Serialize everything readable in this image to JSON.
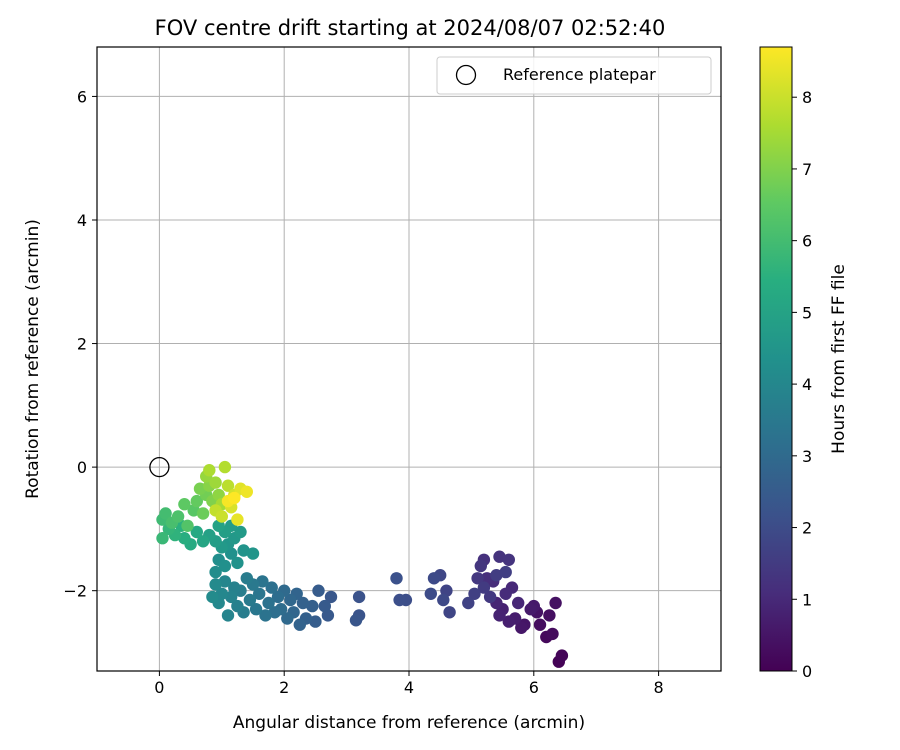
{
  "chart_data": {
    "type": "scatter",
    "title": "FOV centre drift starting at 2024/08/07 02:52:40",
    "xlabel": "Angular distance from reference (arcmin)",
    "ylabel": "Rotation from reference (arcmin)",
    "xlim": [
      -1,
      9
    ],
    "ylim": [
      -3.3,
      6.8
    ],
    "xticks": [
      0,
      2,
      4,
      6,
      8
    ],
    "yticks": [
      -2,
      0,
      2,
      4,
      6
    ],
    "grid": true,
    "legend": {
      "placement": "top-right",
      "entries": [
        "Reference platepar"
      ]
    },
    "reference_point": {
      "x": 0,
      "y": 0,
      "label": "Reference platepar"
    },
    "colorbar": {
      "label": "Hours from first FF file",
      "colormap": "viridis",
      "range": [
        0,
        8.7
      ],
      "ticks": [
        0,
        1,
        2,
        3,
        4,
        5,
        6,
        7,
        8
      ]
    },
    "series": [
      {
        "points": [
          [
            6.4,
            -3.15,
            0.05
          ],
          [
            6.45,
            -3.05,
            0.1
          ],
          [
            6.2,
            -2.75,
            0.2
          ],
          [
            6.3,
            -2.7,
            0.25
          ],
          [
            6.1,
            -2.55,
            0.3
          ],
          [
            6.25,
            -2.4,
            0.35
          ],
          [
            6.35,
            -2.2,
            0.4
          ],
          [
            6.05,
            -2.35,
            0.45
          ],
          [
            5.85,
            -2.55,
            0.5
          ],
          [
            5.8,
            -2.6,
            0.55
          ],
          [
            6.0,
            -2.25,
            0.6
          ],
          [
            5.95,
            -2.3,
            0.65
          ],
          [
            5.7,
            -2.45,
            0.7
          ],
          [
            5.6,
            -2.5,
            0.75
          ],
          [
            5.5,
            -2.3,
            0.8
          ],
          [
            5.45,
            -2.4,
            0.85
          ],
          [
            5.4,
            -2.2,
            0.9
          ],
          [
            5.75,
            -2.2,
            0.95
          ],
          [
            5.65,
            -1.95,
            1.0
          ],
          [
            5.55,
            -2.05,
            1.05
          ],
          [
            5.35,
            -1.85,
            1.1
          ],
          [
            5.25,
            -1.8,
            1.15
          ],
          [
            5.2,
            -1.5,
            1.2
          ],
          [
            5.45,
            -1.45,
            1.25
          ],
          [
            5.6,
            -1.5,
            1.3
          ],
          [
            5.15,
            -1.6,
            1.35
          ],
          [
            5.1,
            -1.8,
            1.4
          ],
          [
            5.3,
            -2.1,
            1.45
          ],
          [
            5.2,
            -1.95,
            1.5
          ],
          [
            5.4,
            -1.75,
            1.55
          ],
          [
            5.55,
            -1.7,
            1.6
          ],
          [
            5.05,
            -2.05,
            1.65
          ],
          [
            4.95,
            -2.2,
            1.7
          ],
          [
            4.6,
            -2.0,
            1.75
          ],
          [
            4.65,
            -2.35,
            1.8
          ],
          [
            4.5,
            -1.75,
            1.85
          ],
          [
            4.55,
            -2.15,
            1.9
          ],
          [
            4.4,
            -1.8,
            1.95
          ],
          [
            4.35,
            -2.05,
            2.0
          ],
          [
            3.95,
            -2.15,
            2.05
          ],
          [
            3.85,
            -2.15,
            2.1
          ],
          [
            3.8,
            -1.8,
            2.15
          ],
          [
            3.2,
            -2.1,
            2.2
          ],
          [
            3.2,
            -2.4,
            2.25
          ],
          [
            3.15,
            -2.48,
            2.3
          ],
          [
            2.75,
            -2.1,
            2.35
          ],
          [
            2.7,
            -2.4,
            2.4
          ],
          [
            2.65,
            -2.25,
            2.45
          ],
          [
            2.55,
            -2.0,
            2.5
          ],
          [
            2.5,
            -2.5,
            2.55
          ],
          [
            2.45,
            -2.25,
            2.6
          ],
          [
            2.35,
            -2.45,
            2.65
          ],
          [
            2.3,
            -2.2,
            2.7
          ],
          [
            2.25,
            -2.55,
            2.75
          ],
          [
            2.2,
            -2.05,
            2.8
          ],
          [
            2.15,
            -2.35,
            2.85
          ],
          [
            2.1,
            -2.15,
            2.9
          ],
          [
            2.05,
            -2.45,
            2.95
          ],
          [
            2.0,
            -2.0,
            3.0
          ],
          [
            1.95,
            -2.3,
            3.05
          ],
          [
            1.9,
            -2.1,
            3.1
          ],
          [
            1.85,
            -2.35,
            3.15
          ],
          [
            1.8,
            -1.95,
            3.2
          ],
          [
            1.75,
            -2.2,
            3.25
          ],
          [
            1.7,
            -2.4,
            3.3
          ],
          [
            1.65,
            -1.85,
            3.35
          ],
          [
            1.6,
            -2.05,
            3.4
          ],
          [
            1.55,
            -2.3,
            3.45
          ],
          [
            1.5,
            -1.9,
            3.5
          ],
          [
            1.45,
            -2.15,
            3.55
          ],
          [
            1.4,
            -1.8,
            3.6
          ],
          [
            1.35,
            -2.35,
            3.65
          ],
          [
            1.3,
            -2.0,
            3.7
          ],
          [
            1.25,
            -2.25,
            3.75
          ],
          [
            1.2,
            -1.95,
            3.8
          ],
          [
            1.15,
            -2.1,
            3.85
          ],
          [
            1.1,
            -2.4,
            3.9
          ],
          [
            1.05,
            -1.85,
            3.95
          ],
          [
            1.0,
            -2.05,
            4.0
          ],
          [
            0.95,
            -2.2,
            4.05
          ],
          [
            0.9,
            -1.9,
            4.1
          ],
          [
            0.85,
            -2.1,
            4.15
          ],
          [
            0.9,
            -1.7,
            4.2
          ],
          [
            0.95,
            -1.5,
            4.25
          ],
          [
            1.05,
            -1.6,
            4.3
          ],
          [
            1.15,
            -1.4,
            4.35
          ],
          [
            1.25,
            -1.55,
            4.4
          ],
          [
            1.35,
            -1.35,
            4.45
          ],
          [
            1.5,
            -1.4,
            4.5
          ],
          [
            1.1,
            -1.25,
            4.55
          ],
          [
            1.2,
            -1.15,
            4.6
          ],
          [
            1.0,
            -1.3,
            4.65
          ],
          [
            1.3,
            -1.05,
            4.7
          ],
          [
            1.15,
            -0.95,
            4.75
          ],
          [
            0.9,
            -1.2,
            4.8
          ],
          [
            1.05,
            -1.05,
            4.85
          ],
          [
            0.8,
            -1.1,
            4.9
          ],
          [
            0.95,
            -0.95,
            5.0
          ],
          [
            0.7,
            -1.2,
            5.1
          ],
          [
            0.6,
            -1.05,
            5.2
          ],
          [
            0.5,
            -1.25,
            5.3
          ],
          [
            0.4,
            -1.15,
            5.4
          ],
          [
            0.35,
            -0.95,
            5.5
          ],
          [
            0.25,
            -1.1,
            5.6
          ],
          [
            0.15,
            -1.0,
            5.7
          ],
          [
            0.05,
            -1.15,
            5.8
          ],
          [
            0.05,
            -0.85,
            5.9
          ],
          [
            0.1,
            -0.75,
            6.0
          ],
          [
            0.2,
            -0.9,
            6.1
          ],
          [
            0.3,
            -0.8,
            6.2
          ],
          [
            0.45,
            -0.95,
            6.3
          ],
          [
            0.55,
            -0.7,
            6.4
          ],
          [
            0.4,
            -0.6,
            6.5
          ],
          [
            0.6,
            -0.55,
            6.6
          ],
          [
            0.7,
            -0.75,
            6.7
          ],
          [
            0.75,
            -0.45,
            6.8
          ],
          [
            0.65,
            -0.35,
            6.9
          ],
          [
            0.85,
            -0.55,
            7.0
          ],
          [
            0.8,
            -0.3,
            7.1
          ],
          [
            0.95,
            -0.45,
            7.2
          ],
          [
            0.75,
            -0.15,
            7.3
          ],
          [
            0.9,
            -0.25,
            7.4
          ],
          [
            1.0,
            -0.6,
            7.5
          ],
          [
            0.8,
            -0.05,
            7.6
          ],
          [
            1.05,
            0.0,
            7.7
          ],
          [
            1.1,
            -0.3,
            7.8
          ],
          [
            0.9,
            -0.7,
            7.9
          ],
          [
            1.0,
            -0.8,
            8.0
          ],
          [
            1.2,
            -0.45,
            8.1
          ],
          [
            1.15,
            -0.65,
            8.2
          ],
          [
            1.3,
            -0.35,
            8.3
          ],
          [
            1.25,
            -0.85,
            8.4
          ],
          [
            1.4,
            -0.4,
            8.5
          ],
          [
            1.1,
            -0.55,
            8.6
          ],
          [
            1.2,
            -0.5,
            8.7
          ]
        ]
      }
    ]
  }
}
